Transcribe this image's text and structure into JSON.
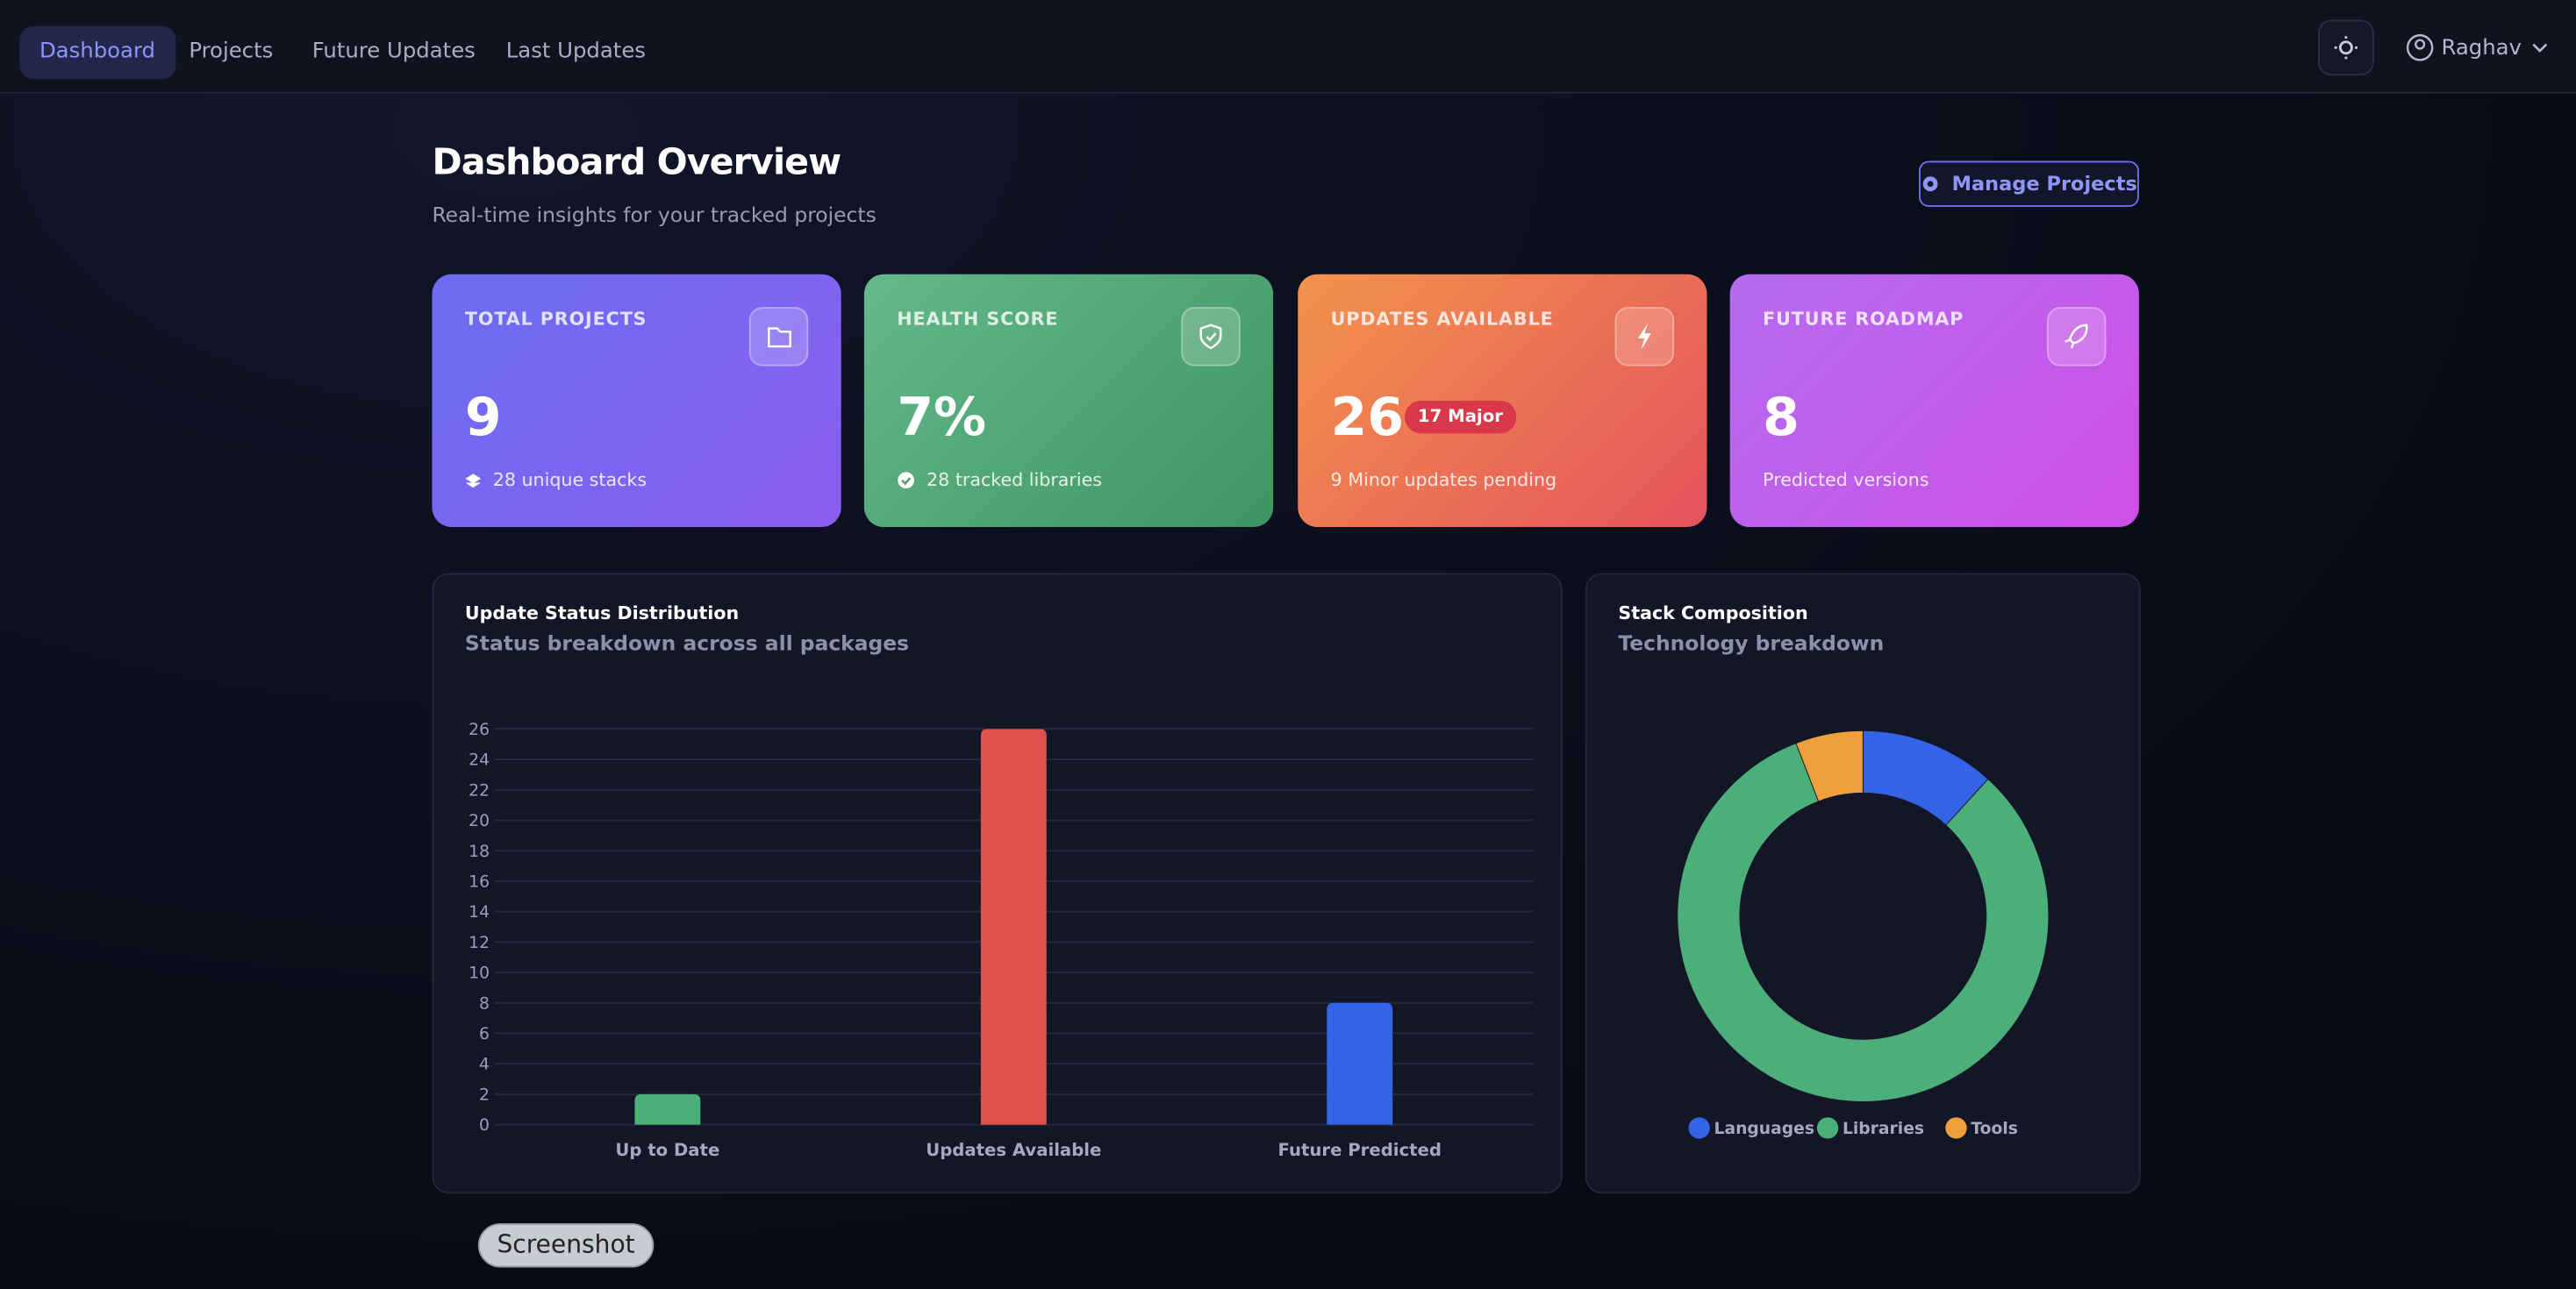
{
  "nav": {
    "tabs": [
      "Dashboard",
      "Projects",
      "Future Updates",
      "Last Updates"
    ],
    "user": "Raghav"
  },
  "header": {
    "title": "Dashboard Overview",
    "subtitle": "Real-time insights for your tracked projects",
    "button": "Manage Projects"
  },
  "cards": [
    {
      "label": "TOTAL PROJECTS",
      "value": "9",
      "note": "28 unique stacks"
    },
    {
      "label": "HEALTH SCORE",
      "value": "7%",
      "note": "28 tracked libraries"
    },
    {
      "label": "UPDATES AVAILABLE",
      "value": "26",
      "badge": "17 Major",
      "note": "9 Minor updates pending"
    },
    {
      "label": "FUTURE ROADMAP",
      "value": "8",
      "note": "Predicted versions"
    }
  ],
  "chart_data": [
    {
      "type": "bar",
      "title": "Update Status Distribution",
      "subtitle": "Status breakdown across all packages",
      "categories": [
        "Up to Date",
        "Updates Available",
        "Future Predicted"
      ],
      "values": [
        2,
        26,
        8
      ],
      "colors": [
        "#4caf7a",
        "#e0524e",
        "#3563e6"
      ],
      "ylim": [
        0,
        26
      ],
      "yticks": [
        0,
        2,
        4,
        6,
        8,
        10,
        12,
        14,
        16,
        18,
        20,
        22,
        24,
        26
      ],
      "grid": true
    },
    {
      "type": "doughnut",
      "title": "Stack Composition",
      "subtitle": "Technology breakdown",
      "categories": [
        "Languages",
        "Libraries",
        "Tools"
      ],
      "values": [
        4,
        28,
        2
      ],
      "colors": [
        "#3563e6",
        "#4caf7a",
        "#f0a03a"
      ],
      "legend": "bottom"
    }
  ],
  "tooltip": "Screenshot"
}
